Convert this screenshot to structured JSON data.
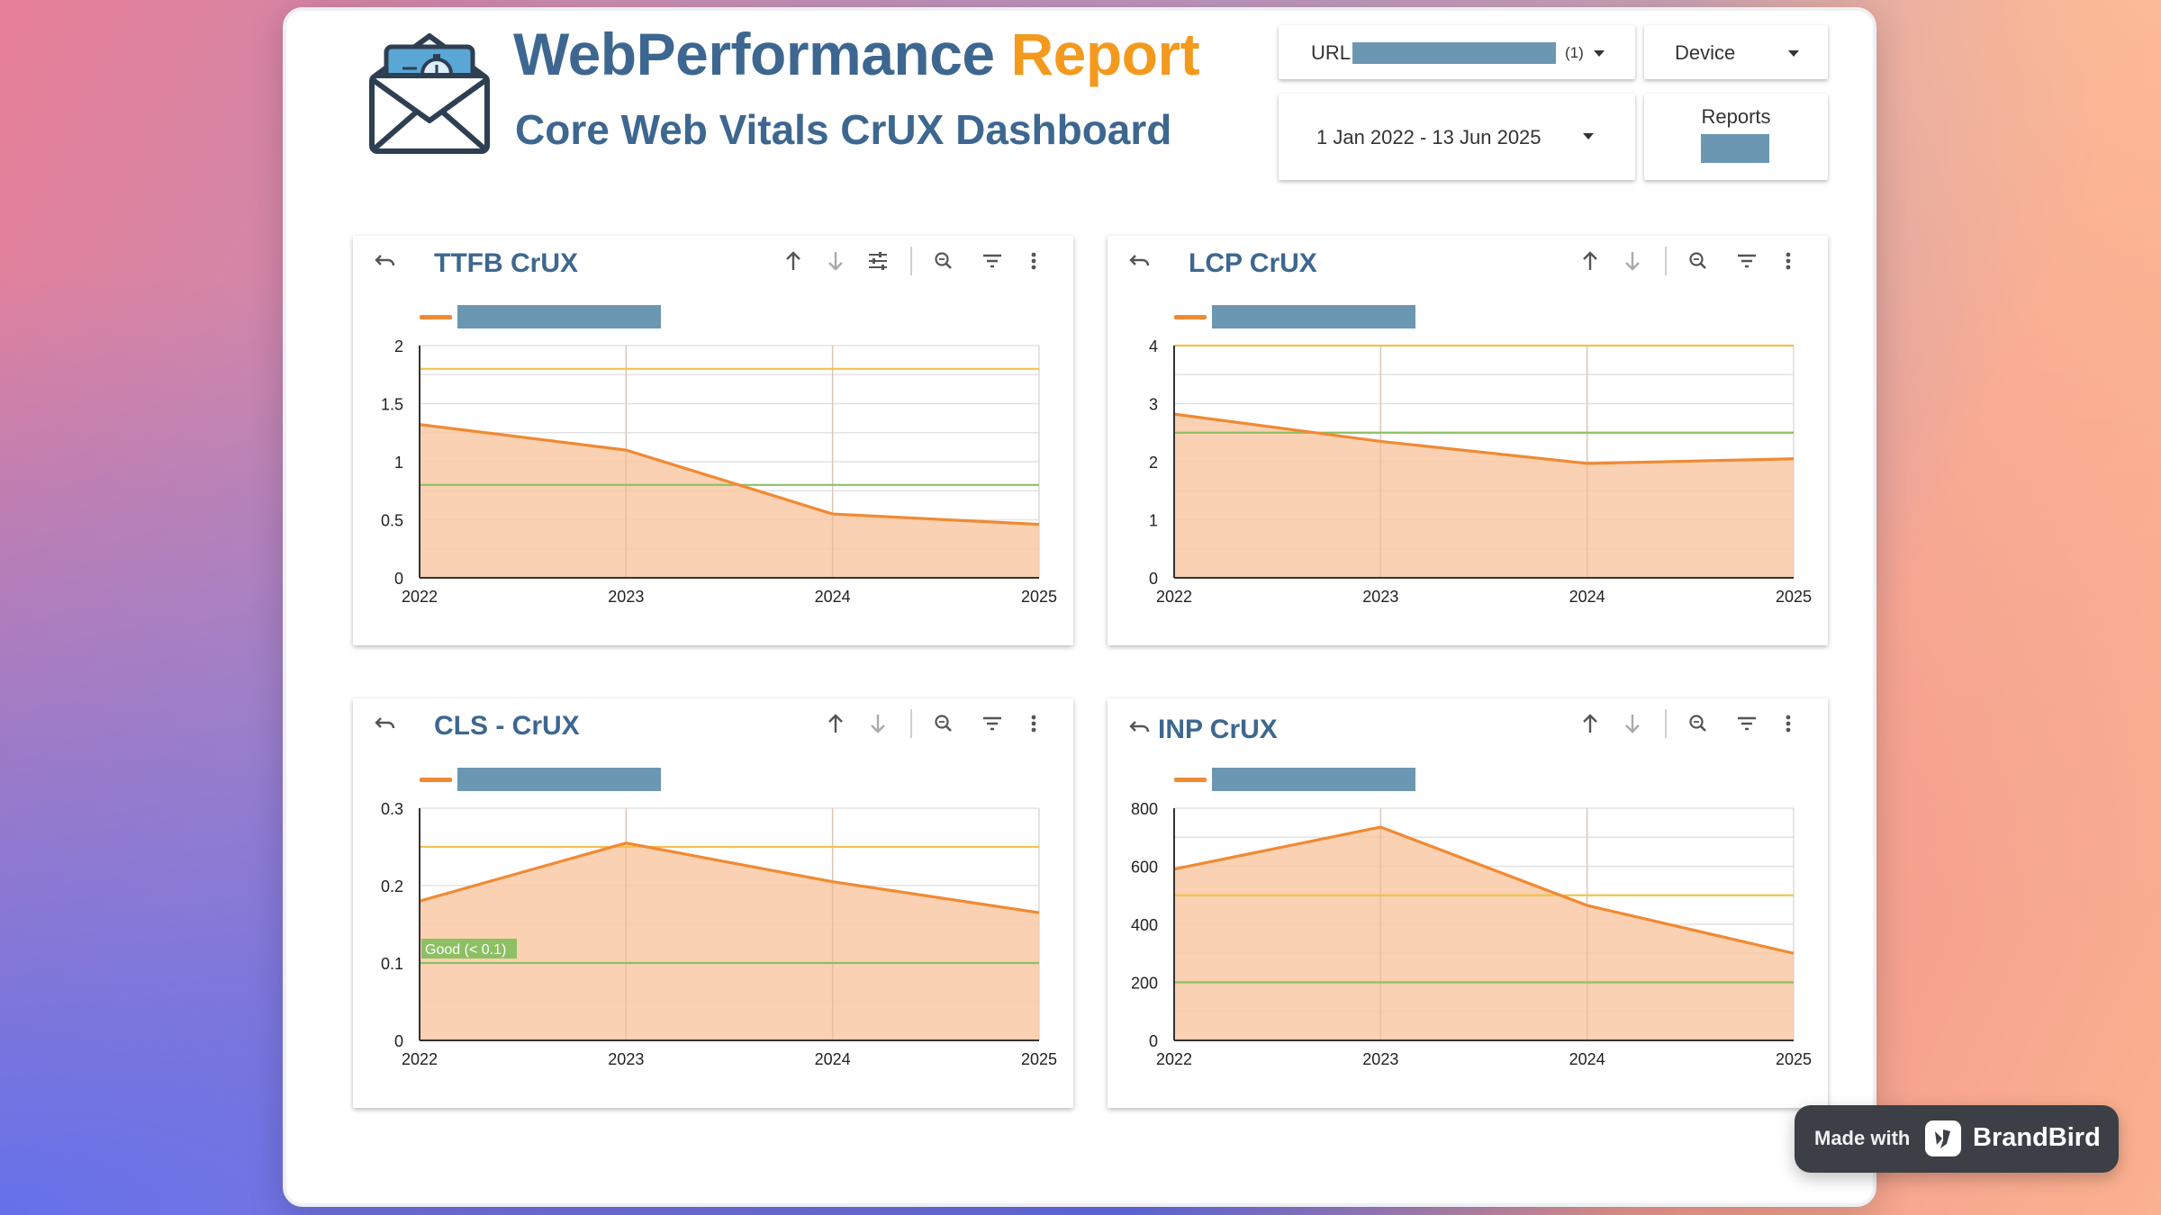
{
  "header": {
    "title_part1": "WebPerformance",
    "title_part2": "Report",
    "subtitle": "Core Web Vitals CrUX Dashboard",
    "brand_icon": "envelope-stopwatch-icon"
  },
  "controls": {
    "url_label": "URL:",
    "url_count": "(1)",
    "device_label": "Device",
    "date_range": "1 Jan 2022 - 13 Jun 2025",
    "reports_label": "Reports"
  },
  "colors": {
    "title_blue": "#3d6790",
    "title_orange": "#f39a1e",
    "series_line": "#f08a33",
    "series_fill": "#f9c9a5",
    "redaction": "#6b97b3",
    "needs_improvement_line": "#f2c24b",
    "good_line": "#8cc063"
  },
  "toolbar_icons": [
    "undo-icon",
    "sort-ascending-icon",
    "sort-descending-icon",
    "settings-sliders-icon",
    "zoom-icon",
    "filter-icon",
    "more-vert-icon"
  ],
  "panels": [
    {
      "title": "TTFB CrUX"
    },
    {
      "title": "LCP CrUX"
    },
    {
      "title": "CLS - CrUX"
    },
    {
      "title": "INP CrUX"
    }
  ],
  "chart_data": [
    {
      "type": "area",
      "title": "TTFB CrUX",
      "x": [
        "2022",
        "2023",
        "2024",
        "2025"
      ],
      "series": [
        {
          "values": [
            1.32,
            1.1,
            0.55,
            0.46
          ]
        }
      ],
      "ylim": [
        0,
        2
      ],
      "yticks": [
        "0",
        "0.5",
        "1",
        "1.5",
        "2"
      ],
      "reference_lines": [
        {
          "value": 1.8,
          "color": "#f2c24b"
        },
        {
          "value": 0.8,
          "color": "#8cc063"
        }
      ],
      "grid": true
    },
    {
      "type": "area",
      "title": "LCP CrUX",
      "x": [
        "2022",
        "2023",
        "2024",
        "2025"
      ],
      "series": [
        {
          "values": [
            2.82,
            2.35,
            1.97,
            2.05
          ]
        }
      ],
      "ylim": [
        0,
        4
      ],
      "yticks": [
        "0",
        "1",
        "2",
        "3",
        "4"
      ],
      "reference_lines": [
        {
          "value": 4,
          "color": "#f2c24b"
        },
        {
          "value": 2.5,
          "color": "#8cc063"
        }
      ],
      "grid": true
    },
    {
      "type": "area",
      "title": "CLS - CrUX",
      "x": [
        "2022",
        "2023",
        "2024",
        "2025"
      ],
      "series": [
        {
          "values": [
            0.18,
            0.255,
            0.205,
            0.165
          ]
        }
      ],
      "ylim": [
        0,
        0.3
      ],
      "yticks": [
        "0",
        "0.1",
        "0.2",
        "0.3"
      ],
      "reference_lines": [
        {
          "value": 0.25,
          "color": "#f2c24b"
        },
        {
          "value": 0.1,
          "color": "#8cc063",
          "label": "Good (< 0.1)"
        }
      ],
      "grid": true
    },
    {
      "type": "area",
      "title": "INP CrUX",
      "x": [
        "2022",
        "2023",
        "2024",
        "2025"
      ],
      "series": [
        {
          "values": [
            590,
            735,
            465,
            300
          ]
        }
      ],
      "ylim": [
        0,
        800
      ],
      "yticks": [
        "0",
        "200",
        "400",
        "600",
        "800"
      ],
      "reference_lines": [
        {
          "value": 500,
          "color": "#f2c24b"
        },
        {
          "value": 200,
          "color": "#8cc063"
        }
      ],
      "grid": true
    }
  ],
  "badge": {
    "made_with": "Made with",
    "brand": "BrandBird"
  }
}
